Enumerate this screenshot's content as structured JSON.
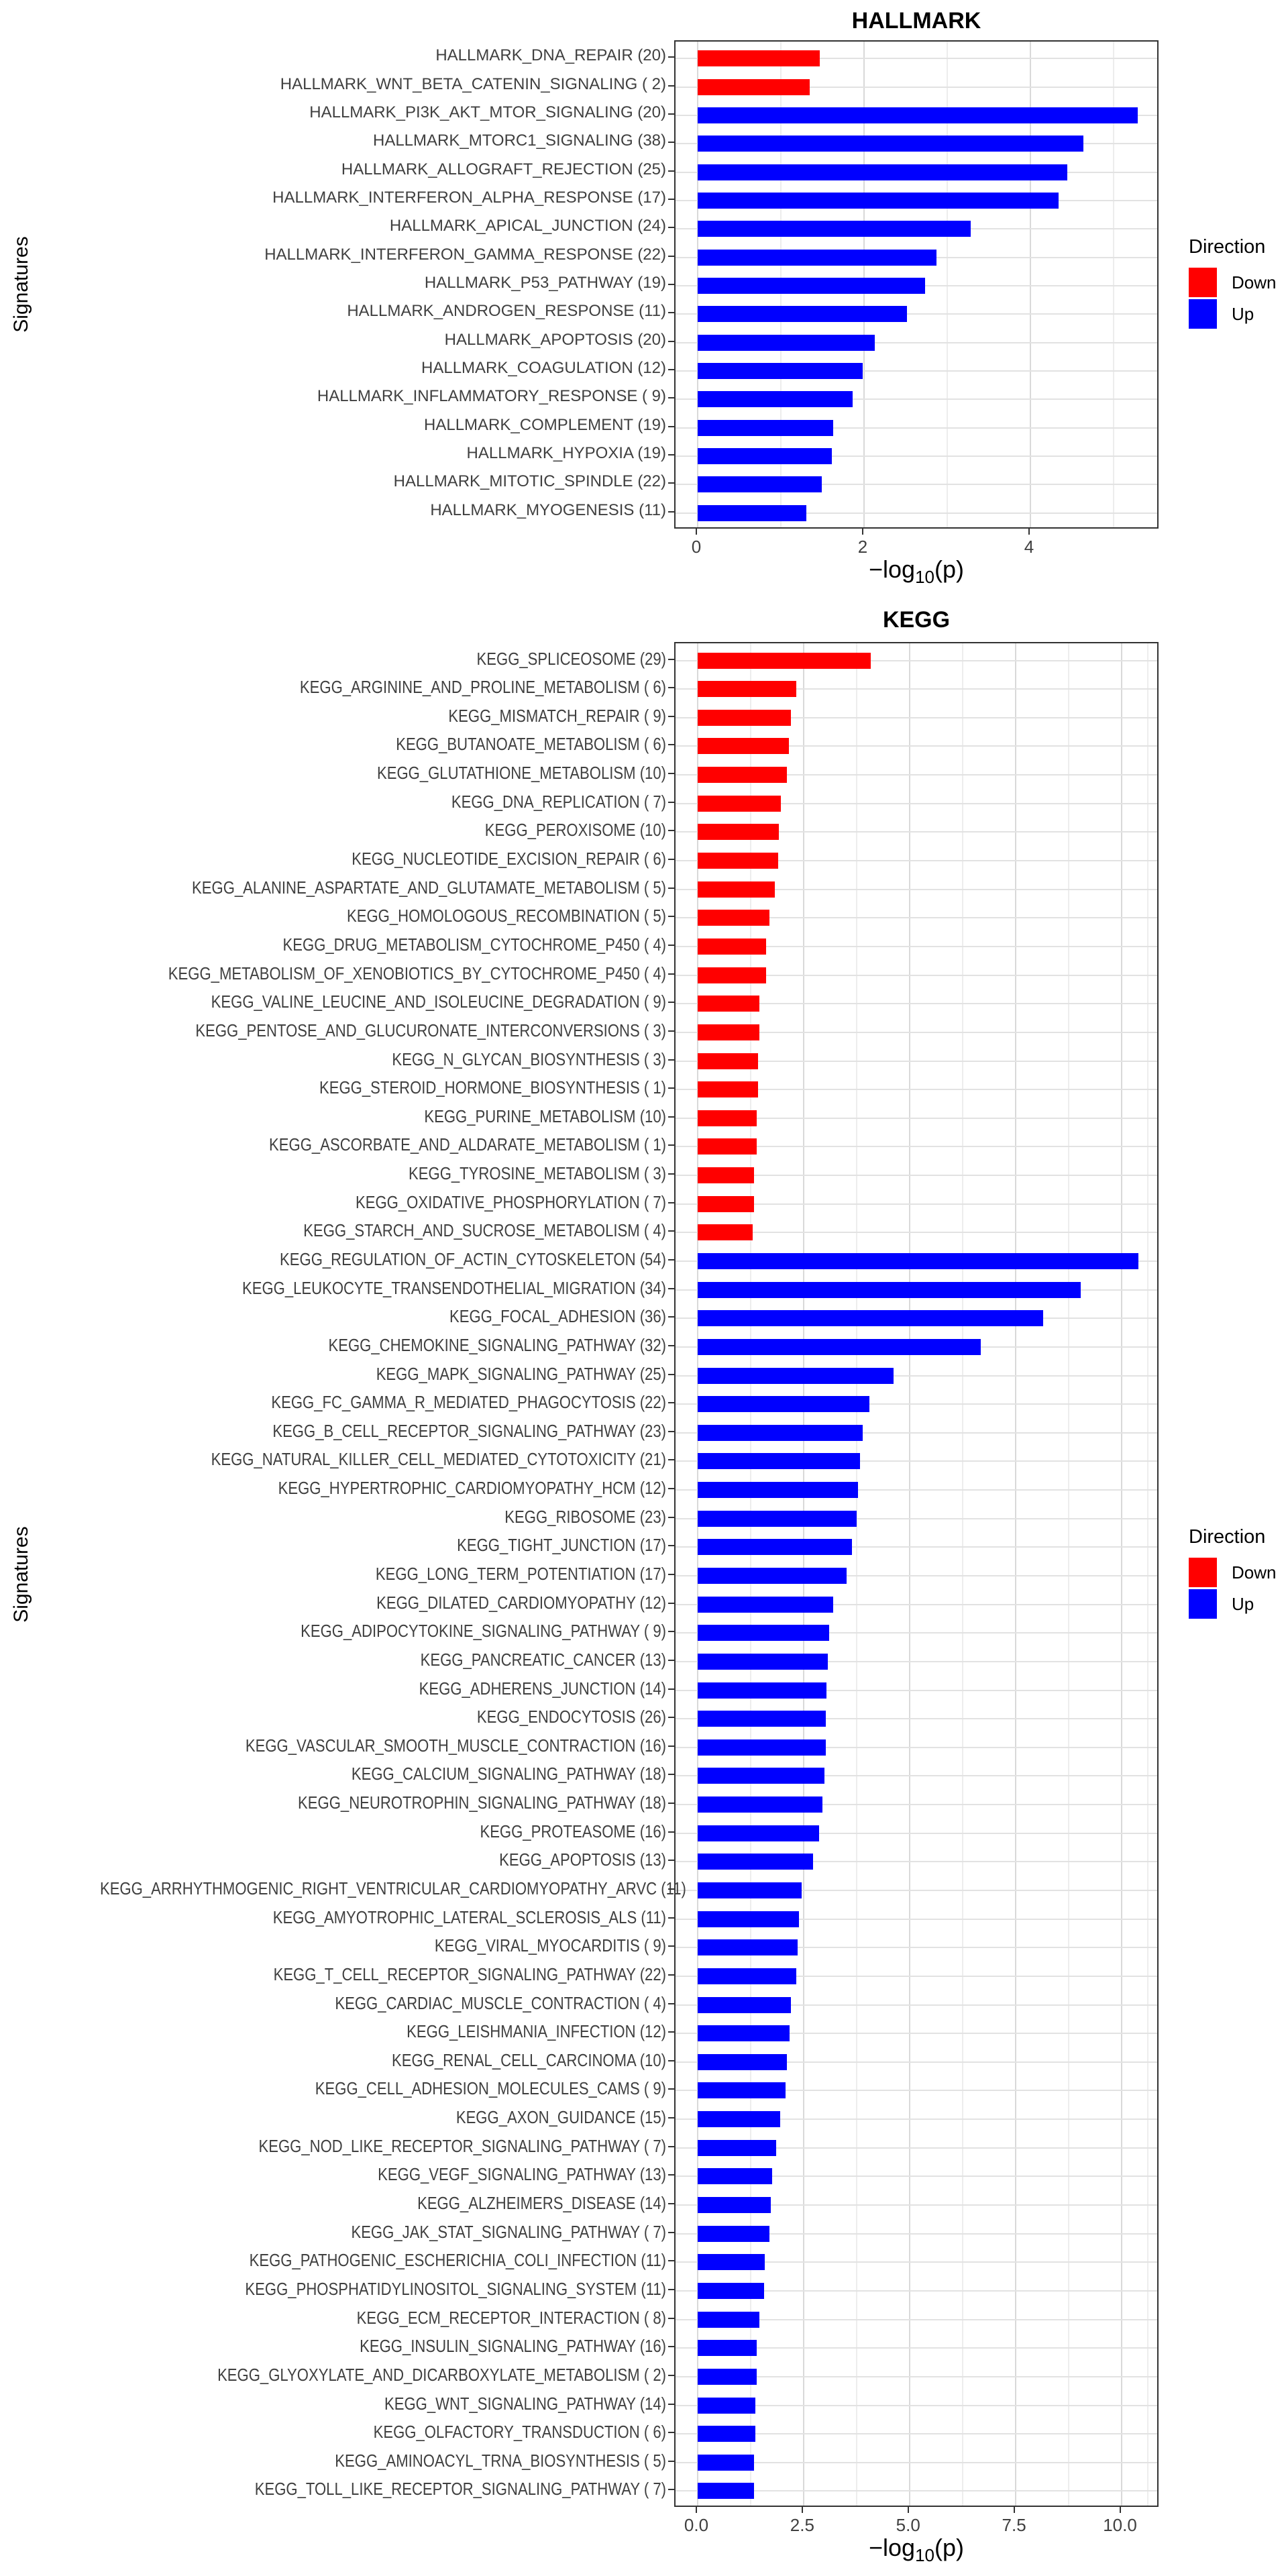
{
  "figure": {
    "y_axis_label": "Signatures",
    "x_axis_label": {
      "full": "-log10(p)",
      "prefix": "−log",
      "sub": "10",
      "suffix": "(p)"
    }
  },
  "legend": {
    "title": "Direction",
    "items": [
      {
        "label": "Down",
        "color": "#FF0000"
      },
      {
        "label": "Up",
        "color": "#0000FF"
      }
    ]
  },
  "style": {
    "bar_down": "#FF0000",
    "bar_up": "#0000FF",
    "grid_major": "#D9D9D9",
    "grid_minor": "#EDEDED",
    "panel_border": "#333333",
    "axis_text": "#404040"
  },
  "chart_data": [
    {
      "type": "bar",
      "orientation": "horizontal",
      "title": "HALLMARK",
      "xlabel": "-log10(p)",
      "ylabel": "Signatures",
      "xlim": [
        0,
        5.56
      ],
      "grid": true,
      "legend_position": "right",
      "xticks": [
        {
          "v": 0,
          "label": "0"
        },
        {
          "v": 2,
          "label": "2"
        },
        {
          "v": 4,
          "label": "4"
        }
      ],
      "xminor": [
        1,
        3,
        5
      ],
      "rows": [
        {
          "label": "HALLMARK_DNA_REPAIR (20)",
          "value": 1.47,
          "dir": "Down"
        },
        {
          "label": "HALLMARK_WNT_BETA_CATENIN_SIGNALING ( 2)",
          "value": 1.35,
          "dir": "Down"
        },
        {
          "label": "HALLMARK_PI3K_AKT_MTOR_SIGNALING (20)",
          "value": 5.29,
          "dir": "Up"
        },
        {
          "label": "HALLMARK_MTORC1_SIGNALING (38)",
          "value": 4.64,
          "dir": "Up"
        },
        {
          "label": "HALLMARK_ALLOGRAFT_REJECTION (25)",
          "value": 4.44,
          "dir": "Up"
        },
        {
          "label": "HALLMARK_INTERFERON_ALPHA_RESPONSE (17)",
          "value": 4.34,
          "dir": "Up"
        },
        {
          "label": "HALLMARK_APICAL_JUNCTION (24)",
          "value": 3.28,
          "dir": "Up"
        },
        {
          "label": "HALLMARK_INTERFERON_GAMMA_RESPONSE (22)",
          "value": 2.87,
          "dir": "Up"
        },
        {
          "label": "HALLMARK_P53_PATHWAY (19)",
          "value": 2.73,
          "dir": "Up"
        },
        {
          "label": "HALLMARK_ANDROGEN_RESPONSE (11)",
          "value": 2.52,
          "dir": "Up"
        },
        {
          "label": "HALLMARK_APOPTOSIS (20)",
          "value": 2.13,
          "dir": "Up"
        },
        {
          "label": "HALLMARK_COAGULATION (12)",
          "value": 1.98,
          "dir": "Up"
        },
        {
          "label": "HALLMARK_INFLAMMATORY_RESPONSE ( 9)",
          "value": 1.86,
          "dir": "Up"
        },
        {
          "label": "HALLMARK_COMPLEMENT (19)",
          "value": 1.63,
          "dir": "Up"
        },
        {
          "label": "HALLMARK_HYPOXIA (19)",
          "value": 1.61,
          "dir": "Up"
        },
        {
          "label": "HALLMARK_MITOTIC_SPINDLE (22)",
          "value": 1.49,
          "dir": "Up"
        },
        {
          "label": "HALLMARK_MYOGENESIS (11)",
          "value": 1.31,
          "dir": "Up"
        }
      ]
    },
    {
      "type": "bar",
      "orientation": "horizontal",
      "title": "KEGG",
      "xlabel": "-log10(p)",
      "ylabel": "Signatures",
      "xlim": [
        0,
        10.9
      ],
      "grid": true,
      "legend_position": "right",
      "xticks": [
        {
          "v": 0,
          "label": "0.0"
        },
        {
          "v": 2.5,
          "label": "2.5"
        },
        {
          "v": 5,
          "label": "5.0"
        },
        {
          "v": 7.5,
          "label": "7.5"
        },
        {
          "v": 10,
          "label": "10.0"
        }
      ],
      "xminor": [
        1.25,
        3.75,
        6.25,
        8.75,
        10.625
      ],
      "rows": [
        {
          "label": "KEGG_SPLICEOSOME (29)",
          "value": 4.08,
          "dir": "Down"
        },
        {
          "label": "KEGG_ARGININE_AND_PROLINE_METABOLISM ( 6)",
          "value": 2.32,
          "dir": "Down"
        },
        {
          "label": "KEGG_MISMATCH_REPAIR ( 9)",
          "value": 2.2,
          "dir": "Down"
        },
        {
          "label": "KEGG_BUTANOATE_METABOLISM ( 6)",
          "value": 2.15,
          "dir": "Down"
        },
        {
          "label": "KEGG_GLUTATHIONE_METABOLISM (10)",
          "value": 2.1,
          "dir": "Down"
        },
        {
          "label": "KEGG_DNA_REPLICATION ( 7)",
          "value": 1.96,
          "dir": "Down"
        },
        {
          "label": "KEGG_PEROXISOME (10)",
          "value": 1.92,
          "dir": "Down"
        },
        {
          "label": "KEGG_NUCLEOTIDE_EXCISION_REPAIR ( 6)",
          "value": 1.9,
          "dir": "Down"
        },
        {
          "label": "KEGG_ALANINE_ASPARTATE_AND_GLUTAMATE_METABOLISM ( 5)",
          "value": 1.82,
          "dir": "Down"
        },
        {
          "label": "KEGG_HOMOLOGOUS_RECOMBINATION ( 5)",
          "value": 1.69,
          "dir": "Down"
        },
        {
          "label": "KEGG_DRUG_METABOLISM_CYTOCHROME_P450 ( 4)",
          "value": 1.61,
          "dir": "Down"
        },
        {
          "label": "KEGG_METABOLISM_OF_XENOBIOTICS_BY_CYTOCHROME_P450 ( 4)",
          "value": 1.61,
          "dir": "Down"
        },
        {
          "label": "KEGG_VALINE_LEUCINE_AND_ISOLEUCINE_DEGRADATION ( 9)",
          "value": 1.46,
          "dir": "Down"
        },
        {
          "label": "KEGG_PENTOSE_AND_GLUCURONATE_INTERCONVERSIONS ( 3)",
          "value": 1.45,
          "dir": "Down"
        },
        {
          "label": "KEGG_N_GLYCAN_BIOSYNTHESIS ( 3)",
          "value": 1.43,
          "dir": "Down"
        },
        {
          "label": "KEGG_STEROID_HORMONE_BIOSYNTHESIS ( 1)",
          "value": 1.42,
          "dir": "Down"
        },
        {
          "label": "KEGG_PURINE_METABOLISM (10)",
          "value": 1.39,
          "dir": "Down"
        },
        {
          "label": "KEGG_ASCORBATE_AND_ALDARATE_METABOLISM ( 1)",
          "value": 1.39,
          "dir": "Down"
        },
        {
          "label": "KEGG_TYROSINE_METABOLISM ( 3)",
          "value": 1.33,
          "dir": "Down"
        },
        {
          "label": "KEGG_OXIDATIVE_PHOSPHORYLATION ( 7)",
          "value": 1.33,
          "dir": "Down"
        },
        {
          "label": "KEGG_STARCH_AND_SUCROSE_METABOLISM ( 4)",
          "value": 1.3,
          "dir": "Down"
        },
        {
          "label": "KEGG_REGULATION_OF_ACTIN_CYTOSKELETON (54)",
          "value": 10.41,
          "dir": "Up"
        },
        {
          "label": "KEGG_LEUKOCYTE_TRANSENDOTHELIAL_MIGRATION (34)",
          "value": 9.04,
          "dir": "Up"
        },
        {
          "label": "KEGG_FOCAL_ADHESION (36)",
          "value": 8.16,
          "dir": "Up"
        },
        {
          "label": "KEGG_CHEMOKINE_SIGNALING_PATHWAY (32)",
          "value": 6.69,
          "dir": "Up"
        },
        {
          "label": "KEGG_MAPK_SIGNALING_PATHWAY (25)",
          "value": 4.62,
          "dir": "Up"
        },
        {
          "label": "KEGG_FC_GAMMA_R_MEDIATED_PHAGOCYTOSIS (22)",
          "value": 4.06,
          "dir": "Up"
        },
        {
          "label": "KEGG_B_CELL_RECEPTOR_SIGNALING_PATHWAY (23)",
          "value": 3.9,
          "dir": "Up"
        },
        {
          "label": "KEGG_NATURAL_KILLER_CELL_MEDIATED_CYTOTOXICITY (21)",
          "value": 3.83,
          "dir": "Up"
        },
        {
          "label": "KEGG_HYPERTROPHIC_CARDIOMYOPATHY_HCM (12)",
          "value": 3.79,
          "dir": "Up"
        },
        {
          "label": "KEGG_RIBOSOME (23)",
          "value": 3.76,
          "dir": "Up"
        },
        {
          "label": "KEGG_TIGHT_JUNCTION (17)",
          "value": 3.65,
          "dir": "Up"
        },
        {
          "label": "KEGG_LONG_TERM_POTENTIATION (17)",
          "value": 3.51,
          "dir": "Up"
        },
        {
          "label": "KEGG_DILATED_CARDIOMYOPATHY (12)",
          "value": 3.2,
          "dir": "Up"
        },
        {
          "label": "KEGG_ADIPOCYTOKINE_SIGNALING_PATHWAY ( 9)",
          "value": 3.1,
          "dir": "Up"
        },
        {
          "label": "KEGG_PANCREATIC_CANCER (13)",
          "value": 3.07,
          "dir": "Up"
        },
        {
          "label": "KEGG_ADHERENS_JUNCTION (14)",
          "value": 3.04,
          "dir": "Up"
        },
        {
          "label": "KEGG_ENDOCYTOSIS (26)",
          "value": 3.03,
          "dir": "Up"
        },
        {
          "label": "KEGG_VASCULAR_SMOOTH_MUSCLE_CONTRACTION (16)",
          "value": 3.02,
          "dir": "Up"
        },
        {
          "label": "KEGG_CALCIUM_SIGNALING_PATHWAY (18)",
          "value": 3.0,
          "dir": "Up"
        },
        {
          "label": "KEGG_NEUROTROPHIN_SIGNALING_PATHWAY (18)",
          "value": 2.95,
          "dir": "Up"
        },
        {
          "label": "KEGG_PROTEASOME (16)",
          "value": 2.87,
          "dir": "Up"
        },
        {
          "label": "KEGG_APOPTOSIS (13)",
          "value": 2.73,
          "dir": "Up"
        },
        {
          "label": "KEGG_ARRHYTHMOGENIC_RIGHT_VENTRICULAR_CARDIOMYOPATHY_ARVC (11)",
          "value": 2.45,
          "dir": "Up"
        },
        {
          "label": "KEGG_AMYOTROPHIC_LATERAL_SCLEROSIS_ALS (11)",
          "value": 2.39,
          "dir": "Up"
        },
        {
          "label": "KEGG_VIRAL_MYOCARDITIS ( 9)",
          "value": 2.36,
          "dir": "Up"
        },
        {
          "label": "KEGG_T_CELL_RECEPTOR_SIGNALING_PATHWAY (22)",
          "value": 2.32,
          "dir": "Up"
        },
        {
          "label": "KEGG_CARDIAC_MUSCLE_CONTRACTION ( 4)",
          "value": 2.2,
          "dir": "Up"
        },
        {
          "label": "KEGG_LEISHMANIA_INFECTION (12)",
          "value": 2.17,
          "dir": "Up"
        },
        {
          "label": "KEGG_RENAL_CELL_CARCINOMA (10)",
          "value": 2.1,
          "dir": "Up"
        },
        {
          "label": "KEGG_CELL_ADHESION_MOLECULES_CAMS ( 9)",
          "value": 2.08,
          "dir": "Up"
        },
        {
          "label": "KEGG_AXON_GUIDANCE (15)",
          "value": 1.94,
          "dir": "Up"
        },
        {
          "label": "KEGG_NOD_LIKE_RECEPTOR_SIGNALING_PATHWAY ( 7)",
          "value": 1.85,
          "dir": "Up"
        },
        {
          "label": "KEGG_VEGF_SIGNALING_PATHWAY (13)",
          "value": 1.75,
          "dir": "Up"
        },
        {
          "label": "KEGG_ALZHEIMERS_DISEASE (14)",
          "value": 1.72,
          "dir": "Up"
        },
        {
          "label": "KEGG_JAK_STAT_SIGNALING_PATHWAY ( 7)",
          "value": 1.7,
          "dir": "Up"
        },
        {
          "label": "KEGG_PATHOGENIC_ESCHERICHIA_COLI_INFECTION (11)",
          "value": 1.59,
          "dir": "Up"
        },
        {
          "label": "KEGG_PHOSPHATIDYLINOSITOL_SIGNALING_SYSTEM (11)",
          "value": 1.57,
          "dir": "Up"
        },
        {
          "label": "KEGG_ECM_RECEPTOR_INTERACTION ( 8)",
          "value": 1.46,
          "dir": "Up"
        },
        {
          "label": "KEGG_INSULIN_SIGNALING_PATHWAY (16)",
          "value": 1.4,
          "dir": "Up"
        },
        {
          "label": "KEGG_GLYOXYLATE_AND_DICARBOXYLATE_METABOLISM ( 2)",
          "value": 1.39,
          "dir": "Up"
        },
        {
          "label": "KEGG_WNT_SIGNALING_PATHWAY (14)",
          "value": 1.36,
          "dir": "Up"
        },
        {
          "label": "KEGG_OLFACTORY_TRANSDUCTION ( 6)",
          "value": 1.36,
          "dir": "Up"
        },
        {
          "label": "KEGG_AMINOACYL_TRNA_BIOSYNTHESIS ( 5)",
          "value": 1.33,
          "dir": "Up"
        },
        {
          "label": "KEGG_TOLL_LIKE_RECEPTOR_SIGNALING_PATHWAY ( 7)",
          "value": 1.33,
          "dir": "Up"
        }
      ]
    }
  ]
}
